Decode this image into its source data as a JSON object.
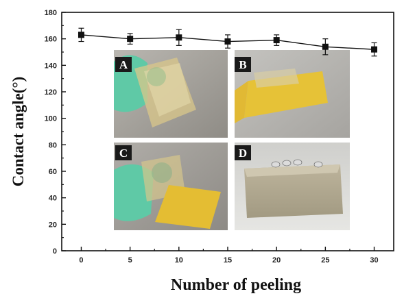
{
  "chart_data": {
    "type": "line",
    "xlabel": "Number of peeling",
    "ylabel": "Contact angle(°)",
    "xlim": [
      -2,
      32
    ],
    "ylim": [
      0,
      180
    ],
    "xticks": [
      0,
      5,
      10,
      15,
      20,
      25,
      30
    ],
    "yticks": [
      0,
      20,
      40,
      60,
      80,
      100,
      120,
      140,
      160,
      180
    ],
    "grid": false,
    "series": [
      {
        "x": [
          0,
          5,
          10,
          15,
          20,
          25,
          30
        ],
        "y": [
          163,
          160,
          161,
          158,
          159,
          154,
          152
        ],
        "error": [
          5,
          4,
          6,
          5,
          4,
          6,
          5
        ],
        "marker": "square",
        "color": "#111111"
      }
    ],
    "insets": [
      {
        "letter": "A",
        "scene": "gloved-hand-folding-film"
      },
      {
        "letter": "B",
        "scene": "film-peeled-with-yellow-tape"
      },
      {
        "letter": "C",
        "scene": "gloved-hand-peeling-tape"
      },
      {
        "letter": "D",
        "scene": "water-droplets-on-block"
      }
    ]
  }
}
